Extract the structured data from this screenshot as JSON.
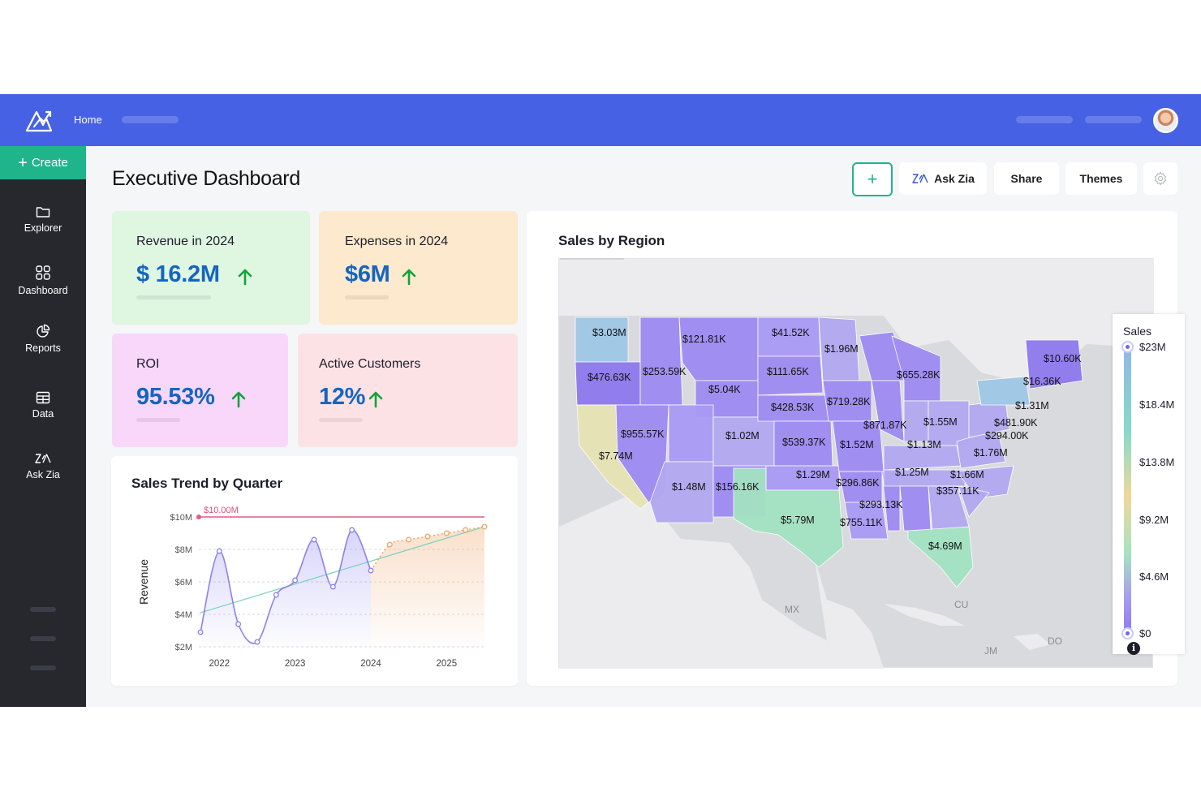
{
  "topbar": {
    "home_label": "Home"
  },
  "sidebar": {
    "create_label": "Create",
    "items": [
      {
        "label": "Explorer",
        "icon": "folder-icon"
      },
      {
        "label": "Dashboard",
        "icon": "grid-icon"
      },
      {
        "label": "Reports",
        "icon": "pie-chart-icon"
      },
      {
        "label": "Data",
        "icon": "table-icon"
      },
      {
        "label": "Ask Zia",
        "icon": "zia-icon"
      }
    ]
  },
  "page": {
    "title": "Executive Dashboard"
  },
  "toolbar": {
    "ask_zia_label": "Ask Zia",
    "share_label": "Share",
    "themes_label": "Themes"
  },
  "colors": {
    "brand_blue": "#4661e4",
    "create_green": "#20b48a",
    "kpi_blue": "#1565c0",
    "up_arrow": "#12a33a"
  },
  "kpis": [
    {
      "label": "Revenue in 2024",
      "value": "$ 16.2M",
      "trend": "up",
      "bg": "#dff6e1"
    },
    {
      "label": "Expenses in 2024",
      "value": "$6M",
      "trend": "up",
      "bg": "#fde9cd"
    },
    {
      "label": "ROI",
      "value": "95.53%",
      "trend": "up",
      "bg": "#f8d7fb"
    },
    {
      "label": "Active Customers",
      "value": "12%",
      "trend": "up",
      "bg": "#fde2e5"
    }
  ],
  "trend_chart": {
    "title": "Sales Trend by Quarter",
    "chart_data": {
      "type": "line",
      "ylabel": "Revenue",
      "y_ticks": [
        "$2M",
        "$4M",
        "$6M",
        "$8M",
        "$10M"
      ],
      "x_ticks": [
        "2022",
        "2023",
        "2024",
        "2025"
      ],
      "ylim": [
        2,
        10
      ],
      "target_label": "$10.00M",
      "target_value": 10,
      "series": [
        {
          "values": [
            [
              2021.75,
              2.9
            ],
            [
              2022.0,
              7.9
            ],
            [
              2022.25,
              3.4
            ],
            [
              2022.5,
              2.3
            ],
            [
              2022.75,
              5.2
            ],
            [
              2023.0,
              6.1
            ],
            [
              2023.25,
              8.6
            ],
            [
              2023.5,
              5.7
            ],
            [
              2023.75,
              9.2
            ],
            [
              2024.0,
              6.7
            ]
          ]
        },
        {
          "values": [
            [
              2024.0,
              6.7
            ],
            [
              2024.25,
              8.3
            ],
            [
              2024.5,
              8.6
            ],
            [
              2024.75,
              8.8
            ],
            [
              2025.0,
              9.0
            ],
            [
              2025.25,
              9.2
            ],
            [
              2025.5,
              9.4
            ]
          ]
        }
      ],
      "trendline": [
        [
          2021.75,
          4.1
        ],
        [
          2025.5,
          9.4
        ]
      ]
    }
  },
  "map": {
    "title": "Sales by Region",
    "legend_title": "Sales",
    "legend_ticks": [
      "$23M",
      "$18.4M",
      "$13.8M",
      "$9.2M",
      "$4.6M",
      "$0"
    ],
    "country_labels": [
      "MX",
      "CU",
      "JM",
      "DO"
    ],
    "state_values": [
      "$3.03M",
      "$121.81K",
      "$41.52K",
      "$1.96M",
      "$476.63K",
      "$253.59K",
      "$111.65K",
      "$655.28K",
      "$10.60K",
      "$16.36K",
      "$5.04K",
      "$428.53K",
      "$719.28K",
      "$1.31M",
      "$955.57K",
      "$1.02M",
      "$539.37K",
      "$871.87K",
      "$1.55M",
      "$481.90K",
      "$294.00K",
      "$7.74M",
      "$1.52M",
      "$1.13M",
      "$1.76M",
      "$1.29M",
      "$1.25M",
      "$1.66M",
      "$1.48M",
      "$156.16K",
      "$296.86K",
      "$357.11K",
      "$293.13K",
      "$5.79M",
      "$755.11K",
      "$4.69M"
    ]
  }
}
